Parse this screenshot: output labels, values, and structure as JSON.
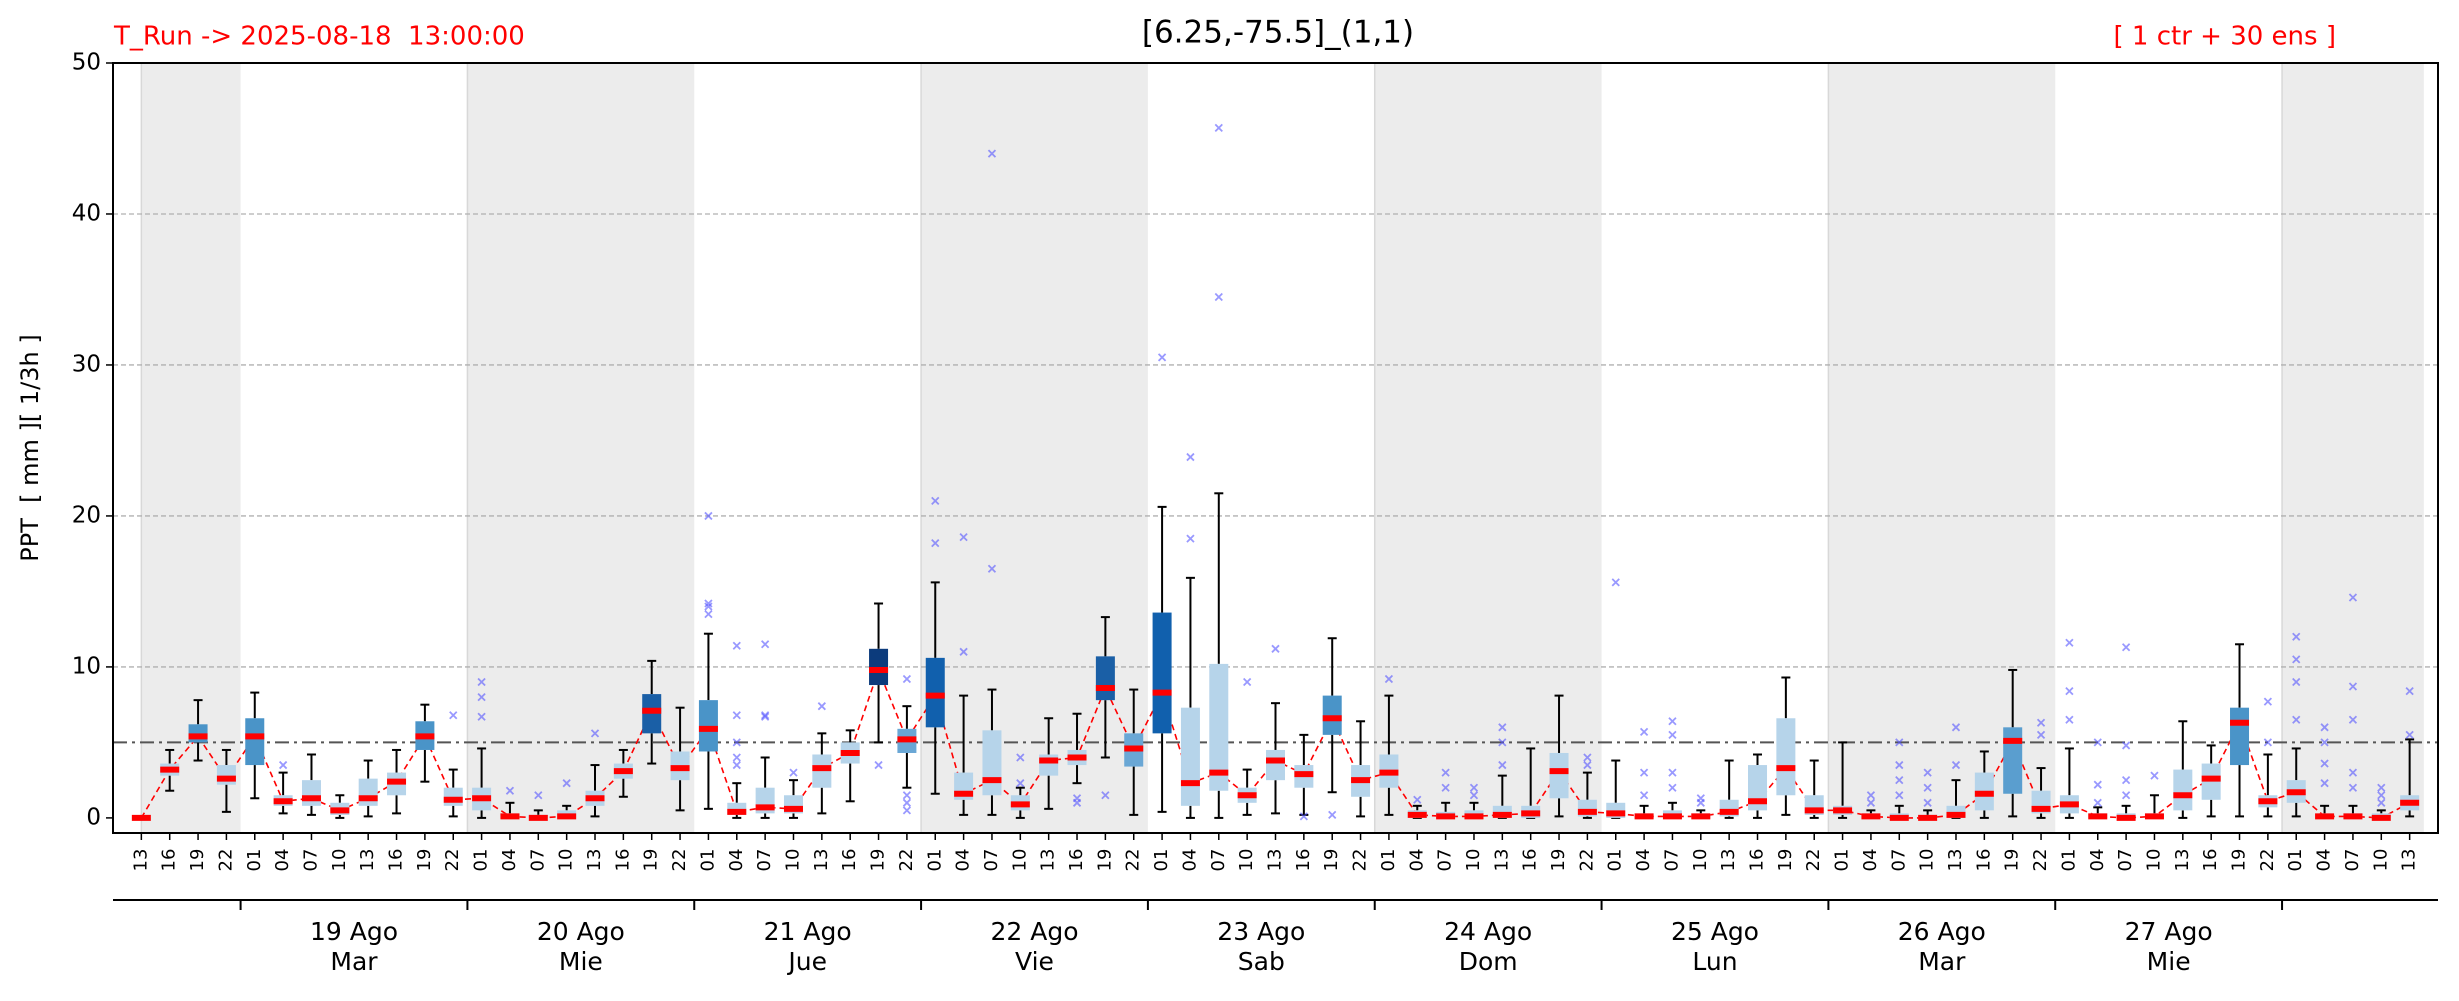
{
  "chart_data": {
    "type": "box",
    "title": "[6.25,-75.5]_(1,1)",
    "run_label": "T_Run -> 2025-08-18  13:00:00",
    "members_label": "[ 1 ctr + 30 ens ]",
    "ylabel": "PPT  [ mm ][ 1/3h ]",
    "ylim": [
      -1,
      50
    ],
    "yticks": [
      0,
      10,
      20,
      30,
      40,
      50
    ],
    "grid": true,
    "threshold": 5,
    "median_color": "#ff0000",
    "flier_color": "#5555ff",
    "shade_color": "#ececec",
    "categories": [
      "13",
      "16",
      "19",
      "22",
      "01",
      "04",
      "07",
      "10",
      "13",
      "16",
      "19",
      "22",
      "01",
      "04",
      "07",
      "10",
      "13",
      "16",
      "19",
      "22",
      "01",
      "04",
      "07",
      "10",
      "13",
      "16",
      "19",
      "22",
      "01",
      "04",
      "07",
      "10",
      "13",
      "16",
      "19",
      "22",
      "01",
      "04",
      "07",
      "10",
      "13",
      "16",
      "19",
      "22",
      "01",
      "04",
      "07",
      "10",
      "13",
      "16",
      "19",
      "22",
      "01",
      "04",
      "07",
      "10",
      "13",
      "16",
      "19",
      "22",
      "01",
      "04",
      "07",
      "10",
      "13",
      "16",
      "19",
      "22",
      "01",
      "04",
      "07",
      "10",
      "13",
      "16",
      "19",
      "22",
      "01",
      "04",
      "07",
      "10",
      "13"
    ],
    "days": [
      null,
      {
        "date": "19 Ago",
        "weekday": "Mar"
      },
      {
        "date": "20 Ago",
        "weekday": "Mie"
      },
      {
        "date": "21 Ago",
        "weekday": "Jue"
      },
      {
        "date": "22 Ago",
        "weekday": "Vie"
      },
      {
        "date": "23 Ago",
        "weekday": "Sab"
      },
      {
        "date": "24 Ago",
        "weekday": "Dom"
      },
      {
        "date": "25 Ago",
        "weekday": "Lun"
      },
      {
        "date": "26 Ago",
        "weekday": "Mar"
      },
      {
        "date": "27 Ago",
        "weekday": "Mie"
      },
      null
    ],
    "med": [
      0,
      3.2,
      5.4,
      2.6,
      5.4,
      1.1,
      1.3,
      0.5,
      1.3,
      2.4,
      5.4,
      1.2,
      1.3,
      0.1,
      0,
      0.1,
      1.3,
      3.1,
      7.1,
      3.3,
      5.9,
      0.4,
      0.7,
      0.6,
      3.3,
      4.3,
      9.8,
      5.2,
      8.1,
      1.6,
      2.5,
      0.9,
      3.8,
      4,
      8.6,
      4.6,
      8.3,
      2.3,
      3,
      1.5,
      3.8,
      2.9,
      6.6,
      2.5,
      3,
      0.2,
      0.1,
      0.1,
      0.2,
      0.3,
      3.1,
      0.4,
      0.3,
      0.1,
      0.1,
      0.1,
      0.4,
      1.1,
      3.3,
      0.5,
      0.5,
      0.1,
      0,
      0,
      0.2,
      1.6,
      5.1,
      0.6,
      0.9,
      0.1,
      0,
      0.1,
      1.5,
      2.6,
      6.3,
      1.1,
      1.7,
      0.1,
      0.1,
      0,
      1
    ],
    "q1": [
      0,
      2.8,
      5,
      2.2,
      3.5,
      0.8,
      0.8,
      0.2,
      0.8,
      1.5,
      4.5,
      0.8,
      0.5,
      0,
      0,
      0,
      0.8,
      2.6,
      5.6,
      2.5,
      4.4,
      0.2,
      0.3,
      0.3,
      2,
      3.6,
      8.8,
      4.3,
      6,
      1.2,
      1.5,
      0.5,
      2.8,
      3.5,
      7.8,
      3.4,
      5.6,
      0.8,
      1.8,
      1,
      2.5,
      2,
      5.5,
      1.4,
      2,
      0,
      0,
      0,
      0,
      0,
      1.3,
      0.1,
      0,
      0,
      0,
      0,
      0.1,
      0.5,
      1.5,
      0.2,
      0.2,
      0,
      0,
      0,
      0,
      0.5,
      1.6,
      0.3,
      0.3,
      0,
      0,
      0,
      0.5,
      1.2,
      3.5,
      0.7,
      1,
      0,
      0,
      0,
      0.5
    ],
    "q3": [
      0,
      3.6,
      6.2,
      3.5,
      6.6,
      1.5,
      2.5,
      1,
      2.6,
      3,
      6.4,
      2,
      2,
      0.3,
      0.2,
      0.5,
      1.8,
      3.6,
      8.2,
      4.4,
      7.8,
      1,
      2,
      1.5,
      4.2,
      5,
      11.2,
      5.9,
      10.6,
      3,
      5.8,
      1.5,
      4.2,
      4.5,
      10.7,
      5.6,
      13.6,
      7.3,
      10.2,
      2,
      4.5,
      3.5,
      8.1,
      3.5,
      4.2,
      0.5,
      0.4,
      0.5,
      0.8,
      0.8,
      4.3,
      1.2,
      1,
      0.3,
      0.5,
      0.3,
      1.2,
      3.5,
      6.6,
      1.5,
      0.8,
      0.3,
      0.3,
      0.2,
      0.8,
      3,
      6,
      1.8,
      1.5,
      0.3,
      0.3,
      0.3,
      3.2,
      3.6,
      7.3,
      1.5,
      2.5,
      0.3,
      0.3,
      0.3,
      1.5
    ],
    "whislo": [
      0,
      1.8,
      3.8,
      0.4,
      1.3,
      0.3,
      0.2,
      0,
      0.1,
      0.3,
      2.4,
      0.1,
      0,
      0,
      0,
      0,
      0.1,
      1.4,
      3.6,
      0.5,
      0.6,
      0,
      0,
      0,
      0.3,
      1.1,
      5,
      2,
      1.6,
      0.2,
      0.2,
      0,
      0.6,
      2.3,
      4,
      0.2,
      0.4,
      0,
      0,
      0.2,
      0.3,
      0.2,
      1.7,
      0.1,
      0.2,
      0,
      0,
      0,
      0,
      0,
      0.1,
      0,
      0,
      0,
      0,
      0,
      0,
      0,
      0.2,
      0,
      0,
      0,
      0,
      0,
      0,
      0,
      0.1,
      0,
      0,
      0,
      0,
      0,
      0,
      0.1,
      0.1,
      0.1,
      0.1,
      0,
      0,
      0,
      0.1
    ],
    "whishi": [
      0,
      4.5,
      7.8,
      4.5,
      8.3,
      3,
      4.2,
      1.5,
      3.8,
      4.5,
      7.5,
      3.2,
      4.6,
      1,
      0.5,
      0.8,
      3.5,
      4.5,
      10.4,
      7.3,
      12.2,
      2.3,
      4,
      2.5,
      5.6,
      5.8,
      14.2,
      7.4,
      15.6,
      8.1,
      8.5,
      2,
      6.6,
      6.9,
      13.3,
      8.5,
      20.6,
      15.9,
      21.5,
      3.2,
      7.6,
      5.5,
      11.9,
      6.4,
      8.1,
      0.8,
      1,
      1,
      2.8,
      4.6,
      8.1,
      3,
      3.8,
      0.8,
      1,
      0.5,
      3.8,
      4.2,
      9.3,
      3.8,
      5,
      0.5,
      0.8,
      0.5,
      2.5,
      4.4,
      9.8,
      3.3,
      4.6,
      0.7,
      0.8,
      1.5,
      6.4,
      4.8,
      11.5,
      4.2,
      4.6,
      0.8,
      0.8,
      0.5,
      5.2
    ],
    "fliers": [
      [],
      [],
      [],
      [],
      [],
      [
        3.5
      ],
      [],
      [],
      [],
      [],
      [],
      [
        6.8
      ],
      [
        6.7,
        8,
        9
      ],
      [
        1.8
      ],
      [
        1.5
      ],
      [
        2.3
      ],
      [
        5.6
      ],
      [],
      [],
      [],
      [
        13.5,
        14,
        14.2,
        20
      ],
      [
        3.5,
        4,
        5,
        6.8,
        11.4
      ],
      [
        6.7,
        6.8,
        11.5
      ],
      [
        3
      ],
      [
        7.4
      ],
      [],
      [
        3.5
      ],
      [
        9.2,
        1,
        1.5,
        0.5
      ],
      [
        18.2,
        21
      ],
      [
        11,
        18.6
      ],
      [
        16.5,
        44
      ],
      [
        2.3,
        4
      ],
      [],
      [
        1,
        1.3
      ],
      [
        1.5
      ],
      [],
      [
        30.5
      ],
      [
        18.5,
        23.9
      ],
      [
        34.5,
        45.7
      ],
      [
        9
      ],
      [
        11.2
      ],
      [
        0.1
      ],
      [
        0.2
      ],
      [],
      [
        9.2
      ],
      [
        1.2
      ],
      [
        2,
        3
      ],
      [
        1.5,
        2
      ],
      [
        3.5,
        5,
        6
      ],
      [],
      [],
      [
        3.5,
        4
      ],
      [
        15.6
      ],
      [
        1.5,
        3,
        5.7
      ],
      [
        2,
        3,
        5.5,
        6.4
      ],
      [
        1,
        1.3
      ],
      [],
      [],
      [],
      [],
      [],
      [
        1,
        1.5
      ],
      [
        1.5,
        2.5,
        3.5,
        5
      ],
      [
        1,
        2,
        3
      ],
      [
        3.5,
        6
      ],
      [],
      [],
      [
        5.5,
        6.3
      ],
      [
        6.5,
        8.4,
        11.6
      ],
      [
        1,
        2.2,
        5
      ],
      [
        1.5,
        2.5,
        4.8,
        11.3
      ],
      [
        2.8
      ],
      [],
      [],
      [],
      [
        5,
        7.7
      ],
      [
        6.5,
        9,
        10.5,
        12
      ],
      [
        2.3,
        3.6,
        5,
        6
      ],
      [
        2,
        3,
        6.5,
        8.7,
        14.6
      ],
      [
        1,
        1.5,
        2
      ],
      [
        5.5,
        8.4
      ]
    ],
    "box_colors": [
      "#b6d4ea",
      "#b6d4ea",
      "#4a94c8",
      "#b6d4ea",
      "#4a94c8",
      "#b6d4ea",
      "#b6d4ea",
      "#b6d4ea",
      "#b6d4ea",
      "#b6d4ea",
      "#4a94c8",
      "#b6d4ea",
      "#b6d4ea",
      "#b6d4ea",
      "#b6d4ea",
      "#b6d4ea",
      "#b6d4ea",
      "#b6d4ea",
      "#1a5fa6",
      "#b6d4ea",
      "#4a94c8",
      "#b6d4ea",
      "#b6d4ea",
      "#b6d4ea",
      "#b6d4ea",
      "#b6d4ea",
      "#0c3b7c",
      "#6aa7d5",
      "#1160ad",
      "#b6d4ea",
      "#b6d4ea",
      "#b6d4ea",
      "#b6d4ea",
      "#b6d4ea",
      "#1a5fa6",
      "#6aa7d5",
      "#1160ad",
      "#b6d4ea",
      "#b6d4ea",
      "#b6d4ea",
      "#b6d4ea",
      "#b6d4ea",
      "#4a94c8",
      "#b6d4ea",
      "#b6d4ea",
      "#b6d4ea",
      "#b6d4ea",
      "#b6d4ea",
      "#b6d4ea",
      "#b6d4ea",
      "#b6d4ea",
      "#b6d4ea",
      "#b6d4ea",
      "#b6d4ea",
      "#b6d4ea",
      "#b6d4ea",
      "#b6d4ea",
      "#b6d4ea",
      "#b6d4ea",
      "#b6d4ea",
      "#b6d4ea",
      "#b6d4ea",
      "#b6d4ea",
      "#b6d4ea",
      "#b6d4ea",
      "#b6d4ea",
      "#5a9ecf",
      "#b6d4ea",
      "#b6d4ea",
      "#b6d4ea",
      "#b6d4ea",
      "#b6d4ea",
      "#b6d4ea",
      "#b6d4ea",
      "#4a94c8",
      "#b6d4ea",
      "#b6d4ea",
      "#b6d4ea",
      "#b6d4ea",
      "#b6d4ea",
      "#b6d4ea"
    ]
  }
}
